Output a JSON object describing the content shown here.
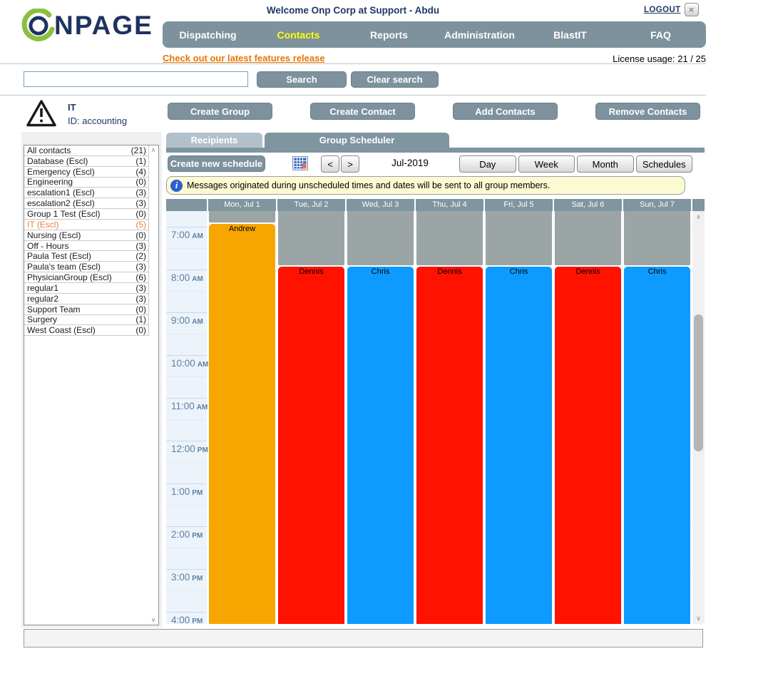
{
  "header": {
    "welcome_text": "Welcome Onp Corp at Support - Abdu",
    "logout_label": "LOGOUT",
    "close_icon": "×",
    "logo_text": "ONPAGE",
    "features_link": "Check out our latest features release",
    "license_text": "License usage: 21 / 25"
  },
  "nav": {
    "items": [
      {
        "label": "Dispatching",
        "active": false
      },
      {
        "label": "Contacts",
        "active": true
      },
      {
        "label": "Reports",
        "active": false
      },
      {
        "label": "Administration",
        "active": false
      },
      {
        "label": "BlastIT",
        "active": false
      },
      {
        "label": "FAQ",
        "active": false
      }
    ],
    "active_color": "#ffff00",
    "bar_color": "#7d929d"
  },
  "search": {
    "input_value": "",
    "search_label": "Search",
    "clear_label": "Clear search"
  },
  "group_header": {
    "name": "IT",
    "id_label": "ID: accounting",
    "buttons": [
      "Create Group",
      "Create Contact",
      "Add Contacts",
      "Remove Contacts"
    ]
  },
  "sidebar": {
    "highlight_color": "#e8813f",
    "items": [
      {
        "name": "All contacts",
        "count": "(21)",
        "highlighted": false
      },
      {
        "name": "Database (Escl)",
        "count": "(1)",
        "highlighted": false
      },
      {
        "name": "Emergency (Escl)",
        "count": "(4)",
        "highlighted": false
      },
      {
        "name": "Engineering",
        "count": "(0)",
        "highlighted": false
      },
      {
        "name": "escalation1 (Escl)",
        "count": "(3)",
        "highlighted": false
      },
      {
        "name": "escalation2 (Escl)",
        "count": "(3)",
        "highlighted": false
      },
      {
        "name": "Group 1 Test (Escl)",
        "count": "(0)",
        "highlighted": false
      },
      {
        "name": "IT (Escl)",
        "count": "(5)",
        "highlighted": true
      },
      {
        "name": "Nursing (Escl)",
        "count": "(0)",
        "highlighted": false
      },
      {
        "name": "Off - Hours",
        "count": "(3)",
        "highlighted": false
      },
      {
        "name": "Paula Test (Escl)",
        "count": "(2)",
        "highlighted": false
      },
      {
        "name": "Paula's team (Escl)",
        "count": "(3)",
        "highlighted": false
      },
      {
        "name": "PhysicianGroup (Escl)",
        "count": "(6)",
        "highlighted": false
      },
      {
        "name": "regular1",
        "count": "(3)",
        "highlighted": false
      },
      {
        "name": "regular2",
        "count": "(3)",
        "highlighted": false
      },
      {
        "name": "Support Team",
        "count": "(0)",
        "highlighted": false
      },
      {
        "name": "Surgery",
        "count": "(1)",
        "highlighted": false
      },
      {
        "name": "West Coast (Escl)",
        "count": "(0)",
        "highlighted": false
      }
    ]
  },
  "tabs": {
    "items": [
      {
        "label": "Recipients",
        "active": false
      },
      {
        "label": "Group Scheduler",
        "active": true
      }
    ]
  },
  "toolbar": {
    "create_schedule_label": "Create new schedule",
    "prev_label": "<",
    "next_label": ">",
    "period_label": "Jul-2019",
    "view_buttons": [
      "Day",
      "Week",
      "Month",
      "Schedules"
    ]
  },
  "notice": {
    "text": "Messages originated during unscheduled times and dates will be sent to all group members."
  },
  "calendar": {
    "day_headers": [
      "Mon, Jul 1",
      "Tue, Jul 2",
      "Wed, Jul 3",
      "Thu, Jul 4",
      "Fri, Jul 5",
      "Sat, Jul 6",
      "Sun, Jul 7"
    ],
    "time_labels": [
      {
        "time": "7:00",
        "ampm": "AM"
      },
      {
        "time": "8:00",
        "ampm": "AM"
      },
      {
        "time": "9:00",
        "ampm": "AM"
      },
      {
        "time": "10:00",
        "ampm": "AM"
      },
      {
        "time": "11:00",
        "ampm": "AM"
      },
      {
        "time": "12:00",
        "ampm": "PM"
      },
      {
        "time": "1:00",
        "ampm": "PM"
      },
      {
        "time": "2:00",
        "ampm": "PM"
      },
      {
        "time": "3:00",
        "ampm": "PM"
      },
      {
        "time": "4:00",
        "ampm": "PM"
      }
    ],
    "unscheduled_color": "#9ba5a6",
    "events": [
      {
        "day": "Mon, Jul 1",
        "person": "Andrew",
        "start": "7:00 AM",
        "color": "#f7a600"
      },
      {
        "day": "Tue, Jul 2",
        "person": "Dennis",
        "start": "8:00 AM",
        "color": "#ff1200"
      },
      {
        "day": "Wed, Jul 3",
        "person": "Chris",
        "start": "8:00 AM",
        "color": "#0d9bff"
      },
      {
        "day": "Thu, Jul 4",
        "person": "Dennis",
        "start": "8:00 AM",
        "color": "#ff1200"
      },
      {
        "day": "Fri, Jul 5",
        "person": "Chris",
        "start": "8:00 AM",
        "color": "#0d9bff"
      },
      {
        "day": "Sat, Jul 6",
        "person": "Dennis",
        "start": "8:00 AM",
        "color": "#ff1200"
      },
      {
        "day": "Sun, Jul 7",
        "person": "Chris",
        "start": "8:00 AM",
        "color": "#0d9bff"
      }
    ]
  }
}
